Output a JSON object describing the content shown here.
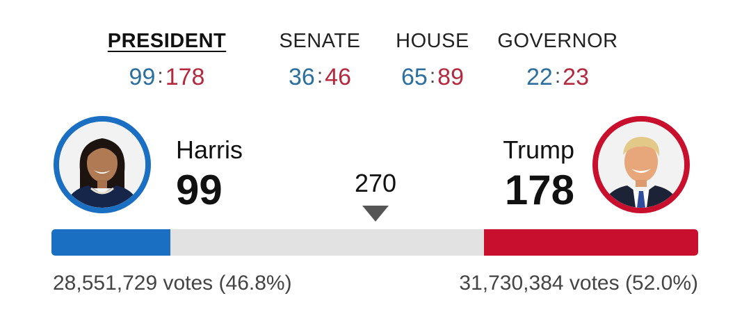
{
  "tabs": [
    {
      "label": "PRESIDENT",
      "dem": "99",
      "rep": "178",
      "sep": ":",
      "active": true
    },
    {
      "label": "SENATE",
      "dem": "36",
      "rep": "46",
      "sep": ":",
      "active": false
    },
    {
      "label": "HOUSE",
      "dem": "65",
      "rep": "89",
      "sep": ":",
      "active": false
    },
    {
      "label": "GOVERNOR",
      "dem": "22",
      "rep": "23",
      "sep": ":",
      "active": false
    }
  ],
  "race": {
    "threshold": "270",
    "threshold_value": 270,
    "total_electoral_votes": 538,
    "democrat": {
      "name": "Harris",
      "electoral_votes": "99",
      "electoral_votes_value": 99,
      "popular_votes": "28,551,729 votes (46.8%)",
      "color": "#1a6fc3",
      "portrait_icon": "harris-portrait"
    },
    "republican": {
      "name": "Trump",
      "electoral_votes": "178",
      "electoral_votes_value": 178,
      "popular_votes": "31,730,384 votes (52.0%)",
      "color": "#c8102e",
      "portrait_icon": "trump-portrait"
    }
  },
  "colors": {
    "dem_text": "#2a6f9e",
    "rep_text": "#b5283d",
    "bar_track": "#e2e2e2",
    "arrow": "#555555"
  }
}
